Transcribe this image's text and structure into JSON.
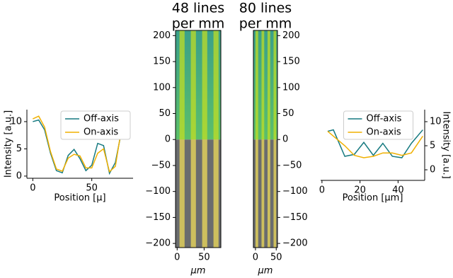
{
  "chart_data": [
    {
      "type": "line",
      "ylabel": "Intensity [a.u.]",
      "xlabel": "Position [μ]",
      "x": [
        0,
        5,
        10,
        15,
        20,
        25,
        30,
        35,
        40,
        45,
        50,
        55,
        60,
        65,
        70,
        75,
        80
      ],
      "series": [
        {
          "name": "Off-axis",
          "color": "#167a80",
          "values": [
            10,
            10.3,
            8.5,
            4.2,
            1.0,
            0.6,
            3.8,
            4.9,
            3.2,
            1.0,
            2.0,
            6.0,
            5.6,
            0.5,
            2.5,
            8.0,
            8.8
          ]
        },
        {
          "name": "On-axis",
          "color": "#f0b000",
          "values": [
            10.5,
            11,
            9,
            4.5,
            1.3,
            0.9,
            3.3,
            4.0,
            3.7,
            1.5,
            1.5,
            4.2,
            5.0,
            0.8,
            1.8,
            8.5,
            11
          ]
        }
      ],
      "xlim": [
        -5,
        85
      ],
      "ylim": [
        -0.4,
        12.2
      ],
      "xticks": [
        0,
        50
      ],
      "yticks": [
        0,
        5,
        10
      ],
      "legend": "upper right"
    },
    {
      "type": "image",
      "title_lines": [
        "48 lines",
        "per mm"
      ],
      "xlabel": "μm",
      "xlim": [
        -3,
        81
      ],
      "ylim": [
        -208,
        210
      ],
      "xticks": [
        0,
        50
      ],
      "yticks": [
        {
          "value": -200,
          "label": "−200"
        },
        {
          "value": -150,
          "label": "−150"
        },
        {
          "value": -100,
          "label": "−100"
        },
        {
          "value": -50,
          "label": "−50"
        },
        0,
        50,
        100,
        150,
        200
      ]
    },
    {
      "type": "image",
      "title_lines": [
        "80 lines",
        "per mm"
      ],
      "xlabel": "μm",
      "xlim": [
        -5,
        53
      ],
      "ylim": [
        -208,
        210
      ],
      "xticks": [
        0,
        50
      ],
      "yticks": [
        {
          "value": -200,
          "label": "−200"
        },
        {
          "value": -150,
          "label": "−150"
        },
        {
          "value": -100,
          "label": "−100"
        },
        {
          "value": -50,
          "label": "−50"
        },
        0,
        50,
        100,
        150,
        200
      ]
    },
    {
      "type": "line",
      "ylabel": "Intensity [a.u.]",
      "xlabel": "Position [μm]",
      "x": [
        3,
        6,
        12,
        17,
        22,
        27,
        32,
        37,
        42,
        47,
        53
      ],
      "series": [
        {
          "name": "Off-axis",
          "color": "#167a80",
          "values": [
            8,
            8.3,
            2.8,
            3.2,
            5.7,
            3,
            5.5,
            2.8,
            2.5,
            5.5,
            8.3
          ]
        },
        {
          "name": "On-axis",
          "color": "#f0b000",
          "values": [
            8,
            7,
            5,
            3,
            2.5,
            2.8,
            3.5,
            3.5,
            3,
            3.5,
            7
          ]
        }
      ],
      "xlim": [
        -0.7,
        54
      ],
      "ylim": [
        -2.2,
        12.5
      ],
      "xticks": [
        0,
        20,
        40
      ],
      "yticks": [
        0,
        5,
        10
      ],
      "legend": "upper center"
    }
  ]
}
